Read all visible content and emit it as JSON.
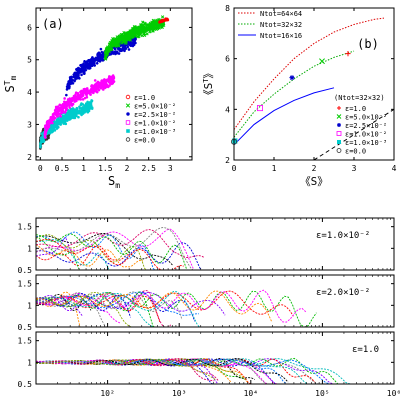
{
  "chart_data": [
    {
      "type": "scatter",
      "panel_label": "(a)",
      "xlabel": "S_m",
      "ylabel": "S_m^T",
      "xlim": [
        -0.1,
        3.5
      ],
      "ylim": [
        1.9,
        6.6
      ],
      "xticks": [
        0,
        0.5,
        1,
        1.5,
        2,
        2.5,
        3
      ],
      "xtick_labels": [
        "0",
        "0.5",
        "1",
        "1.5",
        "2",
        "2.5",
        "3"
      ],
      "yticks": [
        2,
        3,
        4,
        5,
        6
      ],
      "ytick_labels": [
        "2",
        "3",
        "4",
        "5",
        "6"
      ],
      "legend_position": "bottom-right",
      "series": [
        {
          "name": "ε=1.0",
          "color": "#ff0000",
          "marker": "circle",
          "x_range": [
            2.75,
            2.95
          ],
          "y_center": [
            6.15,
            6.25
          ]
        },
        {
          "name": "ε=5.0×10⁻²",
          "color": "#00cc00",
          "marker": "cross",
          "x_range": [
            1.5,
            2.85
          ],
          "y_center": [
            5.1,
            6.15
          ]
        },
        {
          "name": "ε=2.5×10⁻²",
          "color": "#0000cc",
          "marker": "asterisk",
          "x_range": [
            0.6,
            2.2
          ],
          "y_center": [
            3.9,
            5.6
          ]
        },
        {
          "name": "ε=1.0×10⁻²",
          "color": "#ff00ff",
          "marker": "square",
          "x_range": [
            0.1,
            1.7
          ],
          "y_center": [
            2.6,
            4.4
          ]
        },
        {
          "name": "ε=1.0×10⁻³",
          "color": "#00cccc",
          "marker": "filled-square",
          "x_range": [
            0.0,
            1.2
          ],
          "y_center": [
            2.3,
            3.6
          ]
        },
        {
          "name": "ε=0.0",
          "color": "#333333",
          "marker": "circle",
          "x_range": [
            0.0,
            0.2
          ],
          "y_center": [
            2.4,
            2.8
          ]
        }
      ]
    },
    {
      "type": "line",
      "panel_label": "(b)",
      "xlabel": "《S》",
      "ylabel": "《S^T》",
      "xlim": [
        0,
        4
      ],
      "ylim": [
        2,
        8
      ],
      "xticks": [
        0,
        1,
        2,
        3,
        4
      ],
      "xtick_labels": [
        "0",
        "1",
        "2",
        "3",
        "4"
      ],
      "yticks": [
        2,
        4,
        6,
        8
      ],
      "ytick_labels": [
        "2",
        "4",
        "6",
        "8"
      ],
      "legend_position": "top-left",
      "lines": [
        {
          "name": "N_tot=64×64",
          "color": "#dd0000",
          "style": "dotted",
          "x": [
            0,
            0.5,
            1,
            1.5,
            2,
            2.5,
            3,
            3.5,
            3.75
          ],
          "y": [
            3.2,
            4.3,
            5.2,
            6.0,
            6.6,
            7.05,
            7.35,
            7.55,
            7.6
          ]
        },
        {
          "name": "N_tot=32×32",
          "color": "#00aa00",
          "style": "dotted",
          "x": [
            0,
            0.5,
            1,
            1.5,
            2,
            2.5,
            3
          ],
          "y": [
            2.9,
            3.9,
            4.6,
            5.2,
            5.7,
            6.05,
            6.3
          ]
        },
        {
          "name": "N_tot=16×16",
          "color": "#0000ff",
          "style": "solid",
          "x": [
            0,
            0.5,
            1,
            1.5,
            2,
            2.5
          ],
          "y": [
            2.6,
            3.4,
            3.95,
            4.35,
            4.65,
            4.85
          ]
        },
        {
          "name": "",
          "color": "#000000",
          "style": "dashed",
          "x": [
            0,
            4
          ],
          "y": [
            0,
            4
          ]
        }
      ],
      "points_legend_title": "(N_tot=32×32)",
      "points": [
        {
          "name": "ε=1.0",
          "color": "#ff0000",
          "marker": "plus",
          "x": 2.85,
          "y": 6.2
        },
        {
          "name": "ε=5.0×10⁻²",
          "color": "#00cc00",
          "marker": "cross",
          "x": 2.2,
          "y": 5.9
        },
        {
          "name": "ε=2.5×10⁻²",
          "color": "#0000cc",
          "marker": "asterisk",
          "x": 1.45,
          "y": 5.25
        },
        {
          "name": "ε=1.0×10⁻²",
          "color": "#ff00ff",
          "marker": "square",
          "x": 0.65,
          "y": 4.05
        },
        {
          "name": "ε=1.0×10⁻³",
          "color": "#00cccc",
          "marker": "filled-square",
          "x": 0.02,
          "y": 2.75
        },
        {
          "name": "ε=0.0",
          "color": "#333333",
          "marker": "circle",
          "x": 0.0,
          "y": 2.72
        }
      ]
    },
    {
      "type": "line",
      "panel_label": "ε=1.0×10⁻²",
      "x_scale": "log",
      "xlim": [
        10,
        1000000
      ],
      "ylim": [
        0.5,
        1.7
      ],
      "yticks": [
        0.5,
        1,
        1.5
      ],
      "ytick_labels": [
        "0.5",
        "1",
        "1.5"
      ],
      "xticks": [
        100,
        1000,
        10000,
        100000,
        1000000
      ],
      "show_xtick_labels": false,
      "description_of_traces": "many colored dashed traces starting near 1.0 and dropping to 0.5, ends spread between 10^1.3 and 10^3.4",
      "trace_count": 14,
      "x_end_range": [
        20,
        2500
      ],
      "y_start": 1.0
    },
    {
      "type": "line",
      "panel_label": "ε=2.0×10⁻²",
      "x_scale": "log",
      "xlim": [
        10,
        1000000
      ],
      "ylim": [
        0.5,
        1.7
      ],
      "yticks": [
        0.5,
        1,
        1.5
      ],
      "ytick_labels": [
        "0.5",
        "1",
        "1.5"
      ],
      "xticks": [
        100,
        1000,
        10000,
        100000,
        1000000
      ],
      "show_xtick_labels": false,
      "trace_count": 20,
      "x_end_range": [
        30,
        120000
      ],
      "y_start": 1.1
    },
    {
      "type": "line",
      "panel_label": "ε=1.0",
      "x_scale": "log",
      "xlim": [
        10,
        1000000
      ],
      "ylim": [
        0.5,
        1.7
      ],
      "yticks": [
        0.5,
        1,
        1.5
      ],
      "ytick_labels": [
        "0.5",
        "1",
        "1.5"
      ],
      "xticks": [
        100,
        1000,
        10000,
        100000,
        1000000
      ],
      "xtick_labels": [
        "10²",
        "10³",
        "10⁴",
        "10⁵",
        "10⁶"
      ],
      "show_xtick_labels": true,
      "trace_count": 24,
      "x_end_range": [
        3000,
        300000
      ],
      "y_start": 1.0
    }
  ],
  "colors": [
    "#ff0000",
    "#00bb00",
    "#0000dd",
    "#ff00ff",
    "#00bbbb",
    "#888888",
    "#ff8800",
    "#8800ff",
    "#000000",
    "#dd0066",
    "#0077ff",
    "#88aa00"
  ]
}
